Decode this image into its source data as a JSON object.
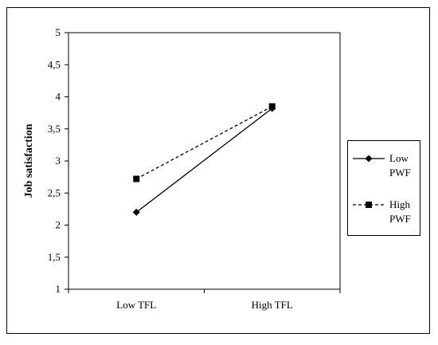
{
  "chart_data": {
    "type": "line",
    "categories": [
      "Low TFL",
      "High TFL"
    ],
    "series": [
      {
        "name_lines": [
          "Low",
          "PWF"
        ],
        "marker": "diamond",
        "dash": false,
        "values": [
          2.2,
          3.82
        ]
      },
      {
        "name_lines": [
          "High",
          "PWF"
        ],
        "marker": "square",
        "dash": true,
        "values": [
          2.72,
          3.85
        ]
      }
    ],
    "ylabel": "Job satisfaction",
    "ylim": [
      1,
      5
    ],
    "yticks": [
      1,
      1.5,
      2,
      2.5,
      3,
      3.5,
      4,
      4.5,
      5
    ],
    "ytick_labels": [
      "1",
      "1,5",
      "2",
      "2,5",
      "3",
      "3,5",
      "4",
      "4,5",
      "5"
    ],
    "legend_position": "right",
    "grid": false,
    "colors": {
      "line": "#000000",
      "marker": "#000000"
    }
  }
}
